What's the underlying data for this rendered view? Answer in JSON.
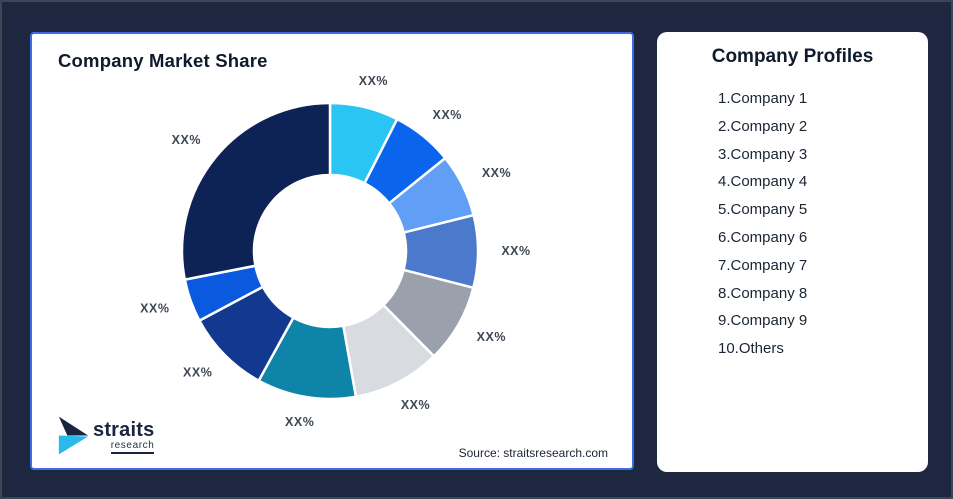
{
  "frame": {
    "background_color": "#1D2840",
    "outer_border_color": "#3E4554"
  },
  "chart_card": {
    "title": "Company Market Share",
    "border_color": "#3D6CE7",
    "source": "Source: straitsresearch.com",
    "logo": {
      "name": "straits",
      "sub": "research",
      "mark_navy": "#1B2440",
      "mark_cyan": "#29B9EA"
    }
  },
  "profiles_card": {
    "title": "Company Profiles",
    "items": [
      "1.Company 1",
      "2.Company 2",
      "3.Company 3",
      "4.Company 4",
      "5.Company 5",
      "6.Company 6",
      "7.Company 7",
      "8.Company 8",
      "9.Company 9",
      "10.Others"
    ]
  },
  "chart_data": {
    "type": "pie",
    "subtype": "donut",
    "title": "Company Market Share",
    "categories": [
      "Company 1",
      "Company 2",
      "Company 3",
      "Company 4",
      "Company 5",
      "Company 6",
      "Company 7",
      "Company 8",
      "Company 9",
      "Others"
    ],
    "values": [
      7.5,
      6.7,
      6.9,
      7.9,
      8.6,
      9.6,
      10.8,
      9.2,
      4.7,
      28.1
    ],
    "labels": [
      "XX%",
      "XX%",
      "XX%",
      "XX%",
      "XX%",
      "XX%",
      "XX%",
      "XX%",
      "XX%",
      "XX%"
    ],
    "colors": [
      "#29C6F4",
      "#0A65EC",
      "#619EF6",
      "#4B79CB",
      "#9AA1AC",
      "#D8DBE0",
      "#0E84A9",
      "#12398F",
      "#0A5AE0",
      "#0D2356"
    ],
    "start_angle_deg": 0,
    "direction": "clockwise",
    "inner_radius_ratio": 0.51,
    "center": [
      298,
      217
    ],
    "outer_radius": 148,
    "inner_radius": 76,
    "label_radius": [
      186,
      174
    ],
    "legend": "none",
    "source": "Source: straitsresearch.com"
  }
}
